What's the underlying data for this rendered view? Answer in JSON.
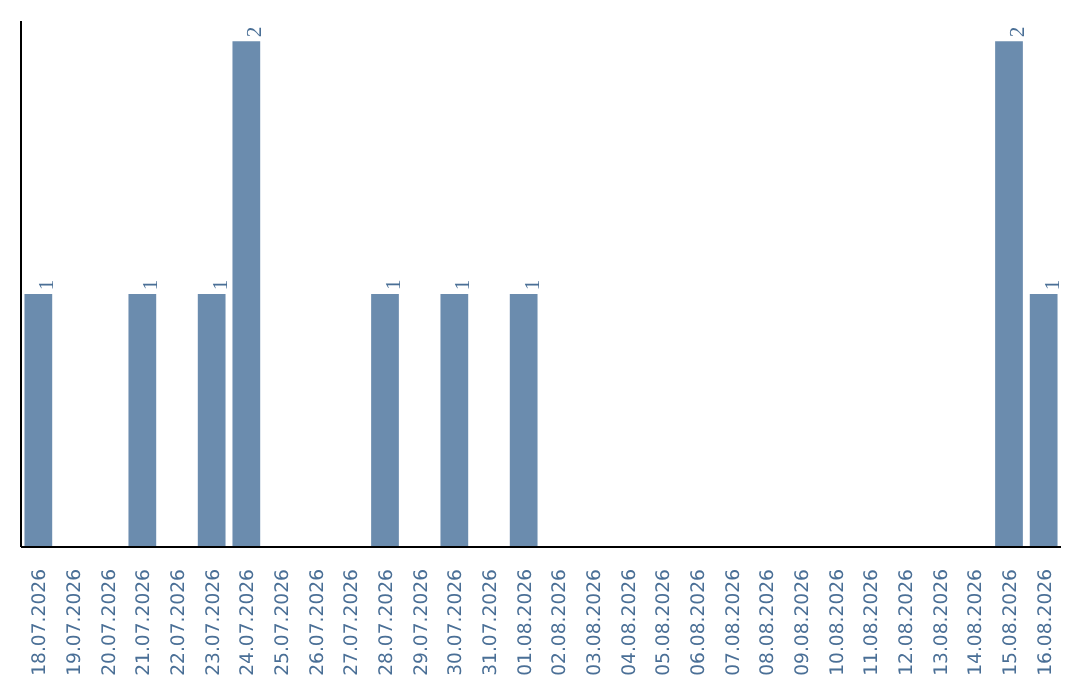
{
  "chart_data": {
    "type": "bar",
    "categories": [
      "18.07.2026",
      "19.07.2026",
      "20.07.2026",
      "21.07.2026",
      "22.07.2026",
      "23.07.2026",
      "24.07.2026",
      "25.07.2026",
      "26.07.2026",
      "27.07.2026",
      "28.07.2026",
      "29.07.2026",
      "30.07.2026",
      "31.07.2026",
      "01.08.2026",
      "02.08.2026",
      "03.08.2026",
      "04.08.2026",
      "05.08.2026",
      "06.08.2026",
      "07.08.2026",
      "08.08.2026",
      "09.08.2026",
      "10.08.2026",
      "11.08.2026",
      "12.08.2026",
      "13.08.2026",
      "14.08.2026",
      "15.08.2026",
      "16.08.2026"
    ],
    "values": [
      1,
      0,
      0,
      1,
      0,
      1,
      2,
      0,
      0,
      0,
      1,
      0,
      1,
      0,
      1,
      0,
      0,
      0,
      0,
      0,
      0,
      0,
      0,
      0,
      0,
      0,
      0,
      0,
      2,
      1
    ],
    "value_labels": [
      "1",
      null,
      null,
      "1",
      null,
      "1",
      "2",
      null,
      null,
      null,
      "1",
      null,
      "1",
      null,
      "1",
      null,
      null,
      null,
      null,
      null,
      null,
      null,
      null,
      null,
      null,
      null,
      null,
      null,
      "2",
      "1"
    ],
    "color": "#6b8cae",
    "tick_labels": "x"
  }
}
